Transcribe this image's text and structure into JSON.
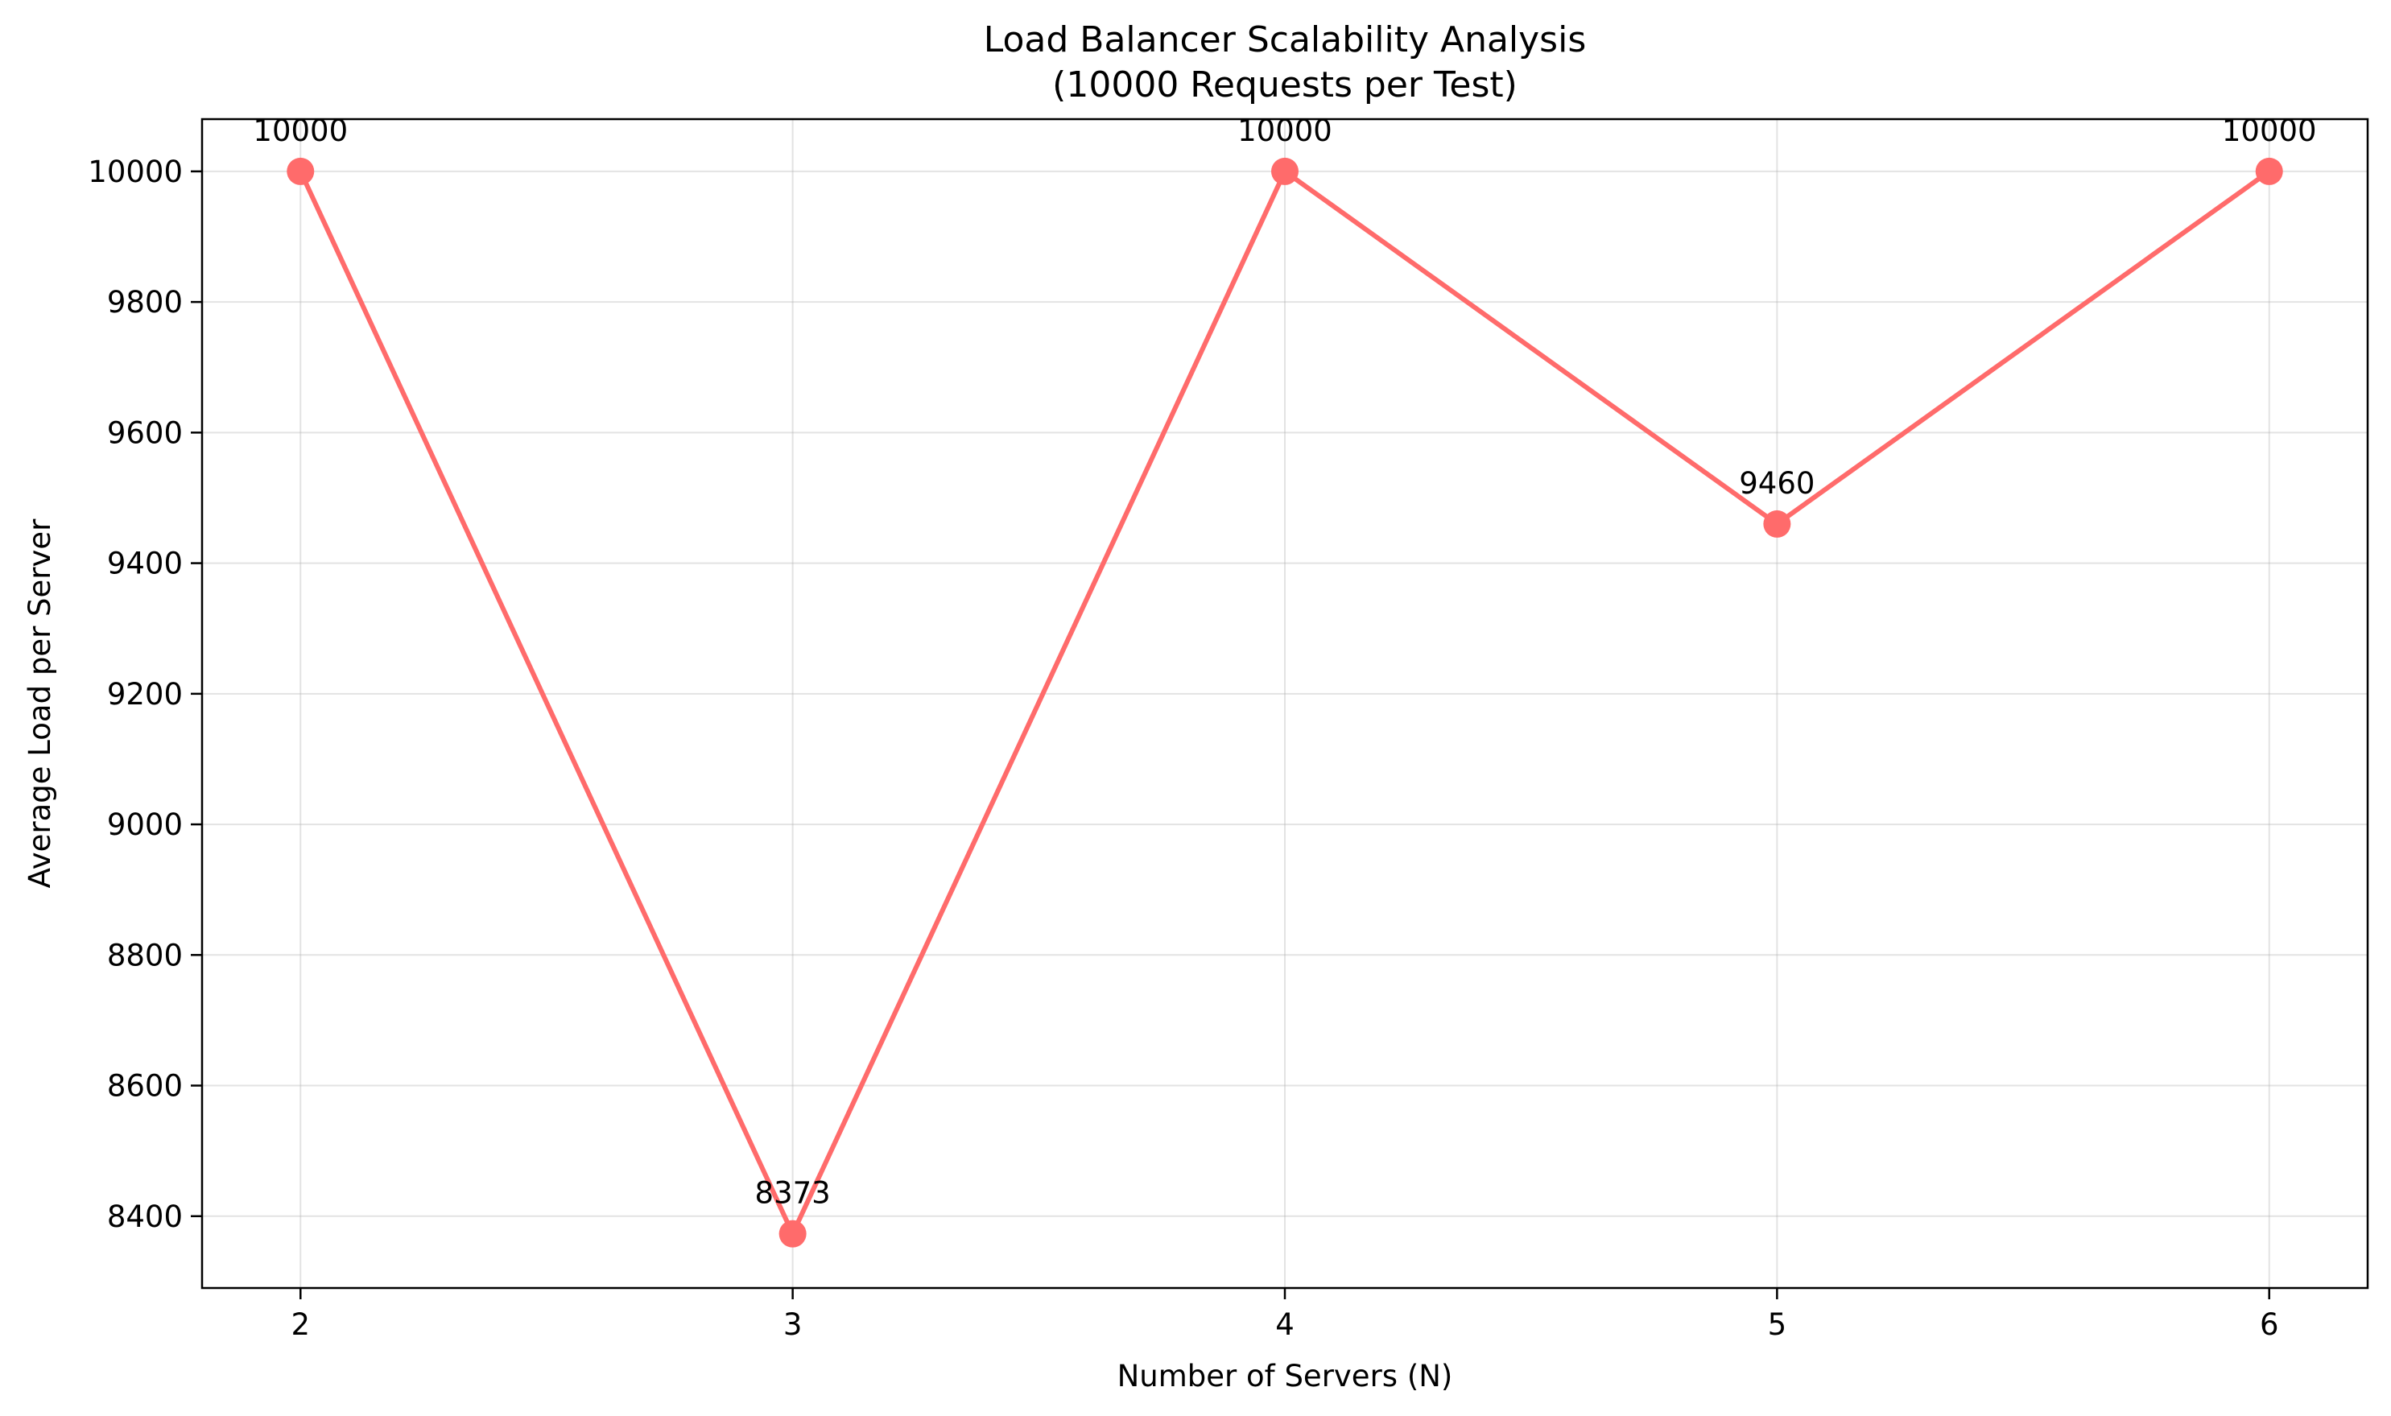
{
  "chart_data": {
    "type": "line",
    "title": "Load Balancer Scalability Analysis",
    "subtitle": "(10000 Requests per Test)",
    "xlabel": "Number of Servers (N)",
    "ylabel": "Average Load per Server",
    "x": [
      2,
      3,
      4,
      5,
      6
    ],
    "series": [
      {
        "values": [
          10000,
          8373,
          10000,
          9460,
          10000
        ],
        "color": "#ff6b6b"
      }
    ],
    "data_labels": [
      "10000",
      "8373",
      "10000",
      "9460",
      "10000"
    ],
    "x_ticks": [
      2,
      3,
      4,
      5,
      6
    ],
    "y_ticks": [
      8400,
      8600,
      8800,
      9000,
      9200,
      9400,
      9600,
      9800,
      10000
    ],
    "xlim": [
      1.8,
      6.2
    ],
    "ylim": [
      8290,
      10080
    ],
    "grid": true,
    "legend": "none"
  }
}
